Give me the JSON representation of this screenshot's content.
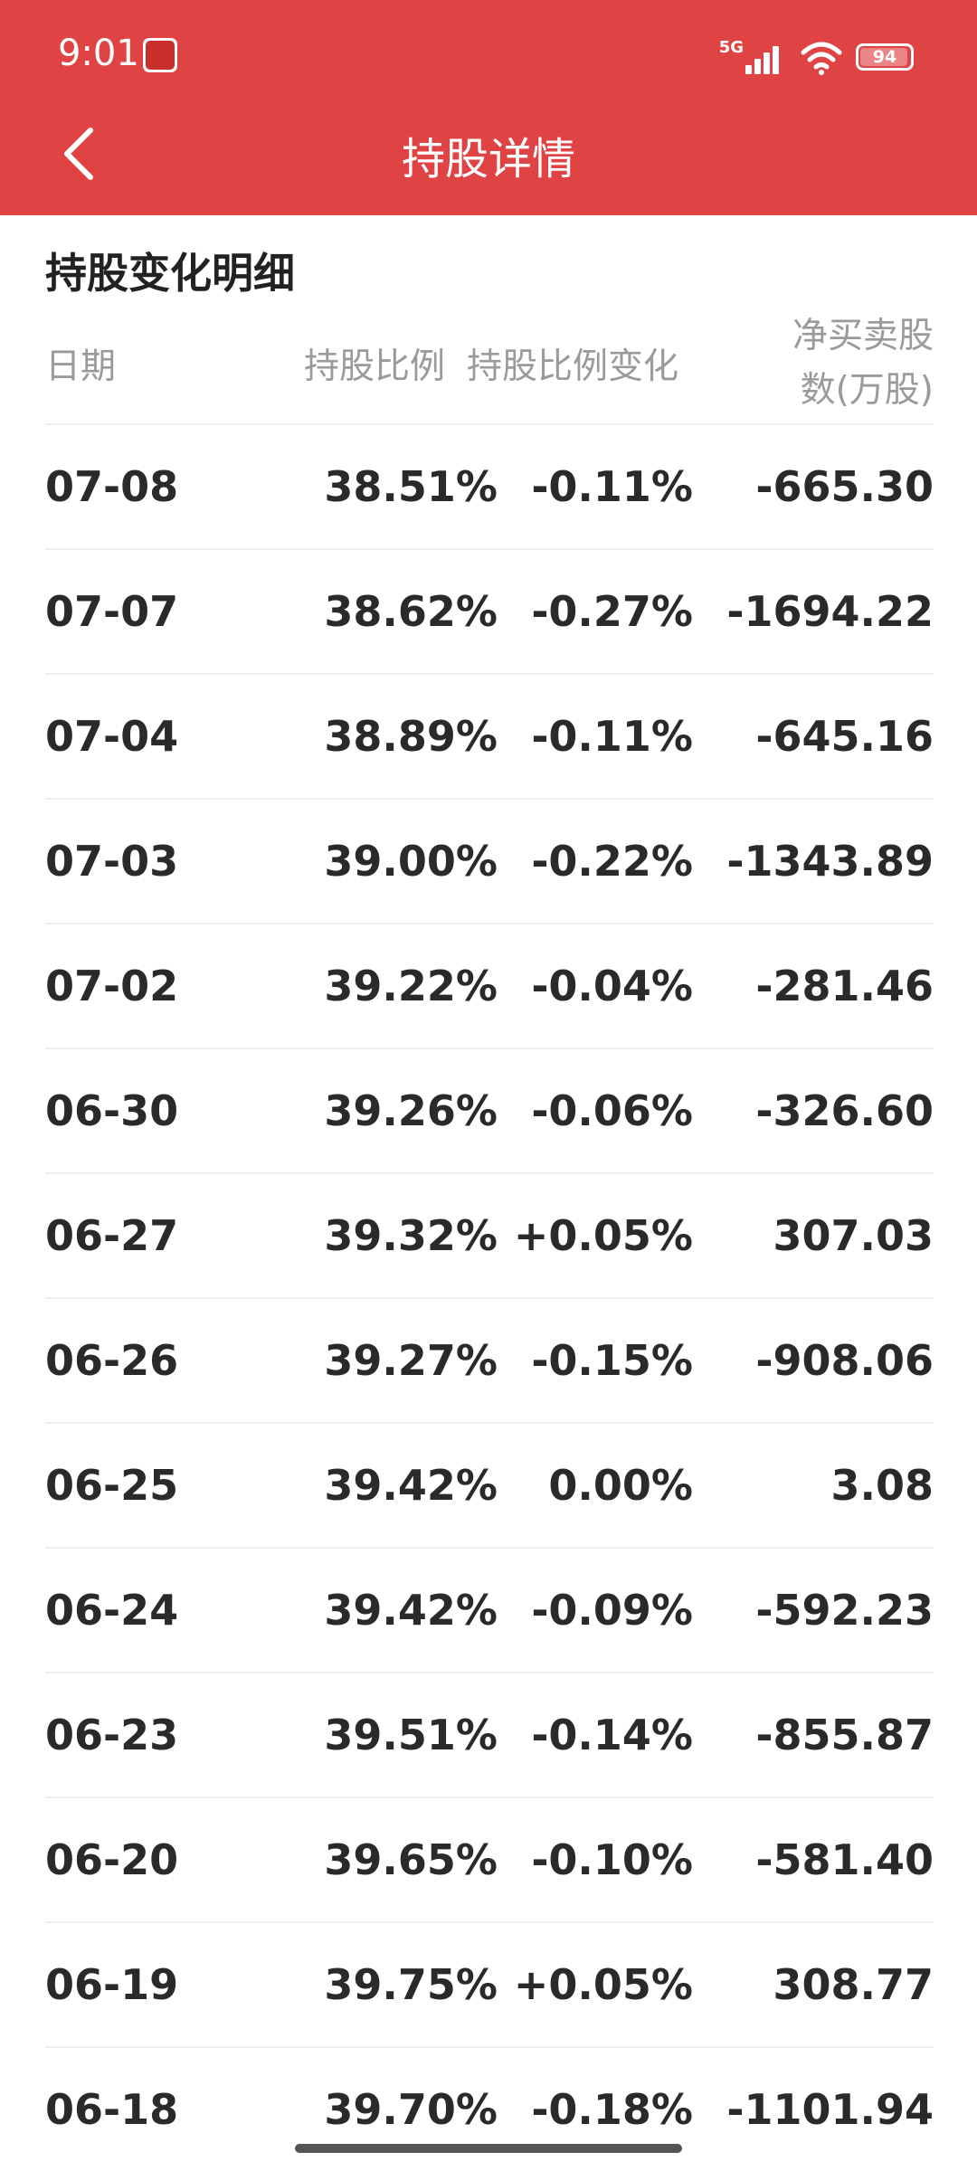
{
  "status_bar": {
    "time": "9:01",
    "network": "5G",
    "battery": "94"
  },
  "header": {
    "title": "持股详情",
    "background_color": "#e04343"
  },
  "section": {
    "title": "持股变化明细"
  },
  "table": {
    "columns": {
      "date": "日期",
      "ratio": "持股比例",
      "change": "持股比例变化",
      "net_line1": "净买卖股",
      "net_line2": "数(万股)"
    },
    "rows": [
      {
        "date": "07-08",
        "ratio": "38.51%",
        "change": "-0.11%",
        "net": "-665.30"
      },
      {
        "date": "07-07",
        "ratio": "38.62%",
        "change": "-0.27%",
        "net": "-1694.22"
      },
      {
        "date": "07-04",
        "ratio": "38.89%",
        "change": "-0.11%",
        "net": "-645.16"
      },
      {
        "date": "07-03",
        "ratio": "39.00%",
        "change": "-0.22%",
        "net": "-1343.89"
      },
      {
        "date": "07-02",
        "ratio": "39.22%",
        "change": "-0.04%",
        "net": "-281.46"
      },
      {
        "date": "06-30",
        "ratio": "39.26%",
        "change": "-0.06%",
        "net": "-326.60"
      },
      {
        "date": "06-27",
        "ratio": "39.32%",
        "change": "+0.05%",
        "net": "307.03"
      },
      {
        "date": "06-26",
        "ratio": "39.27%",
        "change": "-0.15%",
        "net": "-908.06"
      },
      {
        "date": "06-25",
        "ratio": "39.42%",
        "change": "0.00%",
        "net": "3.08"
      },
      {
        "date": "06-24",
        "ratio": "39.42%",
        "change": "-0.09%",
        "net": "-592.23"
      },
      {
        "date": "06-23",
        "ratio": "39.51%",
        "change": "-0.14%",
        "net": "-855.87"
      },
      {
        "date": "06-20",
        "ratio": "39.65%",
        "change": "-0.10%",
        "net": "-581.40"
      },
      {
        "date": "06-19",
        "ratio": "39.75%",
        "change": "+0.05%",
        "net": "308.77"
      },
      {
        "date": "06-18",
        "ratio": "39.70%",
        "change": "-0.18%",
        "net": "-1101.94"
      }
    ]
  },
  "icons": {
    "back": "chevron-left-icon",
    "signal": "cellular-signal-icon",
    "wifi": "wifi-icon",
    "battery": "battery-icon",
    "app": "app-notification-icon"
  }
}
